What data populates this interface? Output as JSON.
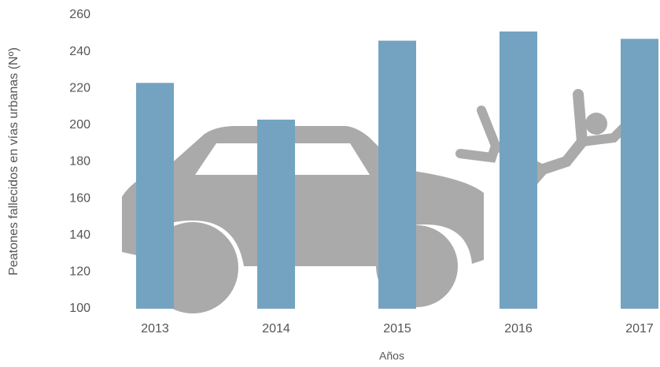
{
  "chart_data": {
    "type": "bar",
    "x_label": "Años",
    "y_label": "Peatones fallecidos en vías urbanas (Nº)",
    "categories": [
      "2013",
      "2014",
      "2015",
      "2016",
      "2017"
    ],
    "values": [
      223,
      203,
      246,
      251,
      247
    ],
    "color": "#73a3c1",
    "ylim": [
      100,
      260
    ],
    "yticks": [
      100,
      120,
      140,
      160,
      180,
      200,
      220,
      240,
      260
    ],
    "grid": false
  }
}
